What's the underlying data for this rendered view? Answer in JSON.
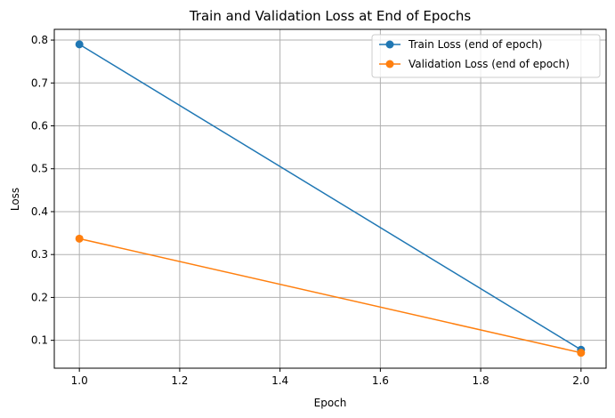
{
  "chart_data": {
    "type": "line",
    "title": "Train and Validation Loss at End of Epochs",
    "xlabel": "Epoch",
    "ylabel": "Loss",
    "x": [
      1.0,
      2.0
    ],
    "xlim": [
      0.95,
      2.05
    ],
    "ylim": [
      0.035,
      0.825
    ],
    "xticks": [
      1.0,
      1.2,
      1.4,
      1.6,
      1.8,
      2.0
    ],
    "xtick_labels": [
      "1.0",
      "1.2",
      "1.4",
      "1.6",
      "1.8",
      "2.0"
    ],
    "yticks": [
      0.1,
      0.2,
      0.3,
      0.4,
      0.5,
      0.6,
      0.7,
      0.8
    ],
    "ytick_labels": [
      "0.1",
      "0.2",
      "0.3",
      "0.4",
      "0.5",
      "0.6",
      "0.7",
      "0.8"
    ],
    "grid": true,
    "legend_position": "top-right",
    "series": [
      {
        "name": "Train Loss (end of epoch)",
        "values": [
          0.79,
          0.078
        ],
        "color": "#1f77b4",
        "marker": "circle"
      },
      {
        "name": "Validation Loss (end of epoch)",
        "values": [
          0.337,
          0.071
        ],
        "color": "#ff7f0e",
        "marker": "circle"
      }
    ]
  }
}
